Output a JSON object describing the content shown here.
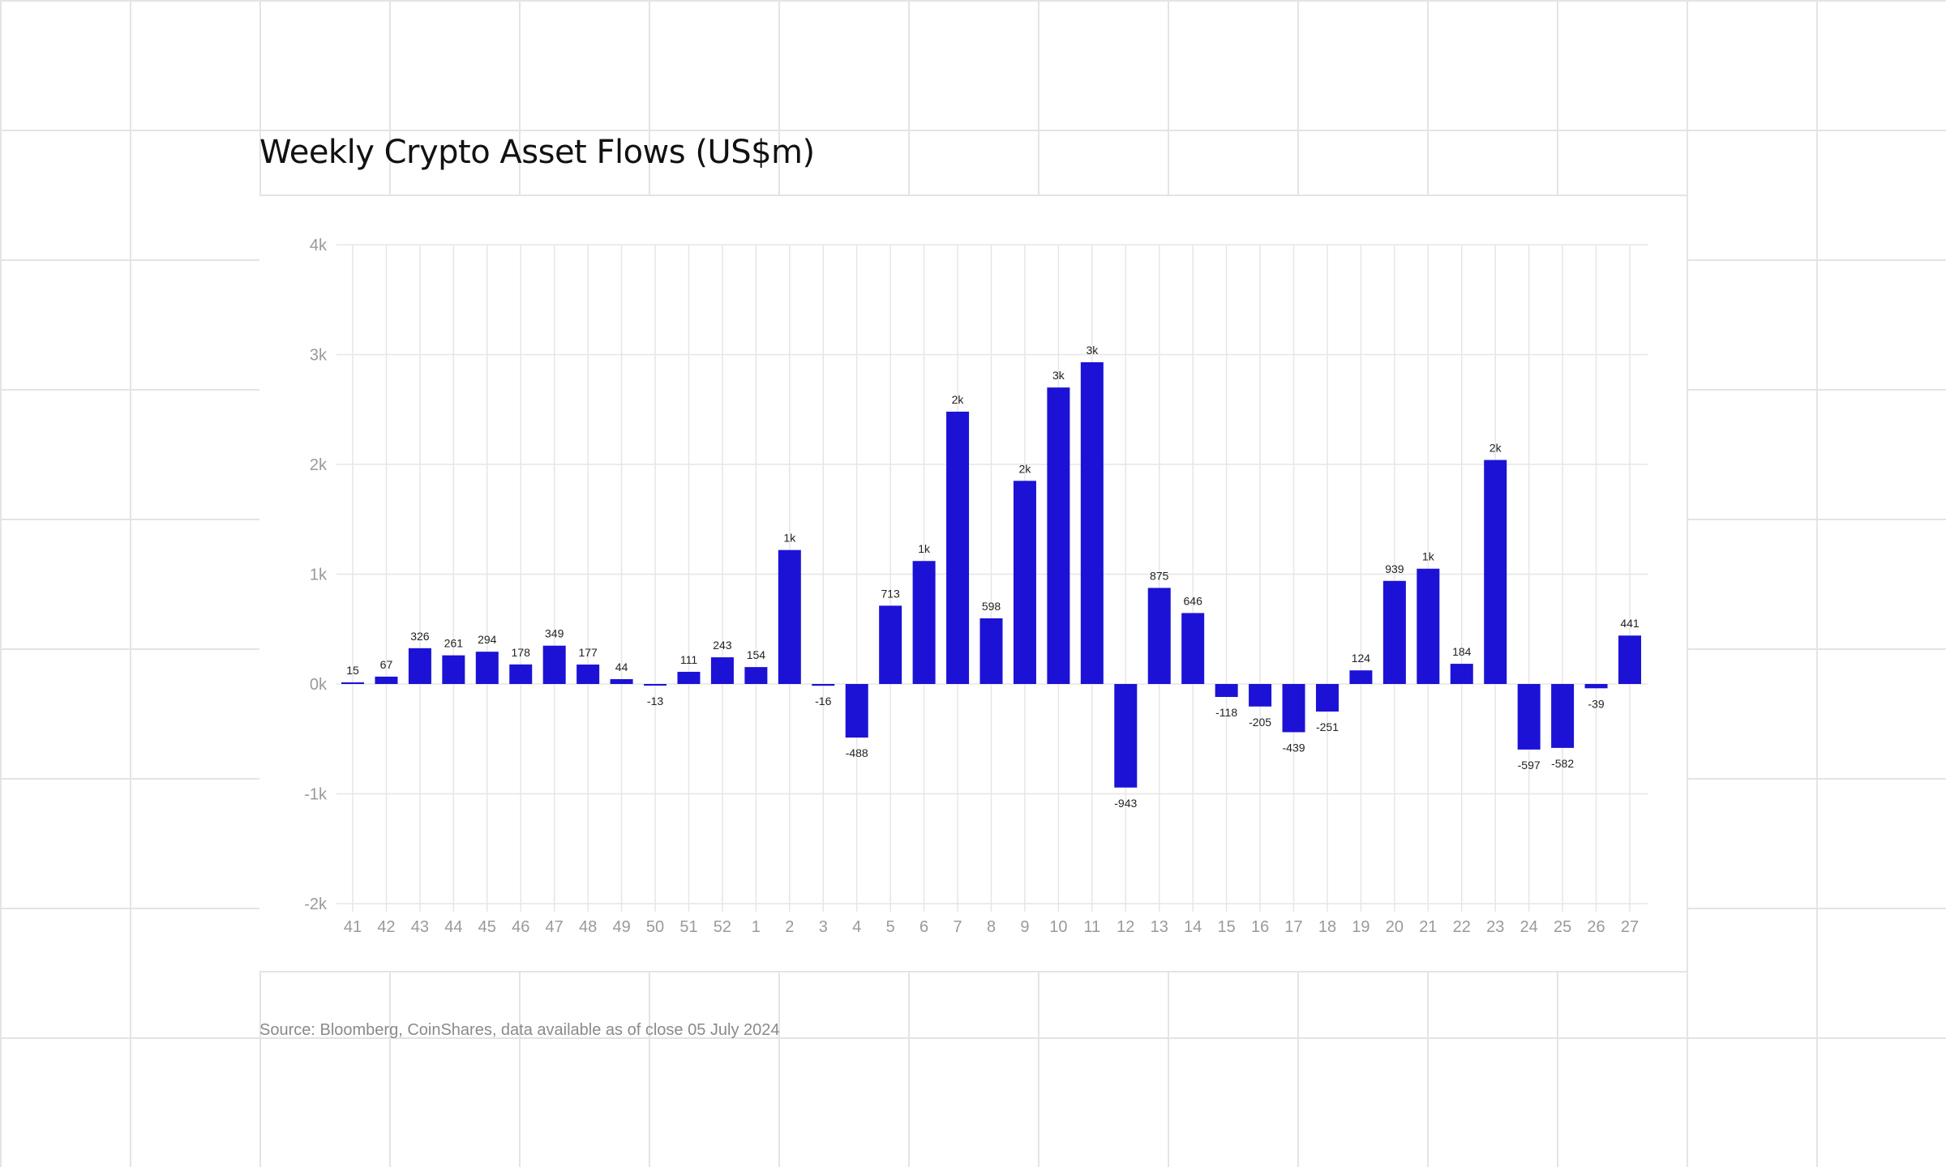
{
  "title": "Weekly Crypto Asset Flows (US$m)",
  "source": "Source: Bloomberg, CoinShares, data available as of close 05 July 2024",
  "colors": {
    "bar": "#1c12d6",
    "grid": "#e6e6e6",
    "axis_text": "#9a9a9a",
    "label_text": "#222222"
  },
  "chart_data": {
    "type": "bar",
    "categories": [
      "41",
      "42",
      "43",
      "44",
      "45",
      "46",
      "47",
      "48",
      "49",
      "50",
      "51",
      "52",
      "1",
      "2",
      "3",
      "4",
      "5",
      "6",
      "7",
      "8",
      "9",
      "10",
      "11",
      "12",
      "13",
      "14",
      "15",
      "16",
      "17",
      "18",
      "19",
      "20",
      "21",
      "22",
      "23",
      "24",
      "25",
      "26",
      "27"
    ],
    "values": [
      15,
      67,
      326,
      261,
      294,
      178,
      349,
      177,
      44,
      -13,
      111,
      243,
      154,
      1220,
      -16,
      -488,
      713,
      1120,
      2480,
      598,
      1850,
      2700,
      2930,
      -943,
      875,
      646,
      -118,
      -205,
      -439,
      -251,
      124,
      939,
      1050,
      184,
      2040,
      -597,
      -582,
      -39,
      441
    ],
    "data_labels": [
      "15",
      "67",
      "326",
      "261",
      "294",
      "178",
      "349",
      "177",
      "44",
      "-13",
      "111",
      "243",
      "154",
      "1k",
      "-16",
      "-488",
      "713",
      "1k",
      "2k",
      "598",
      "2k",
      "3k",
      "3k",
      "-943",
      "875",
      "646",
      "-118",
      "-205",
      "-439",
      "-251",
      "124",
      "939",
      "1k",
      "184",
      "2k",
      "-597",
      "-582",
      "-39",
      "441"
    ],
    "ylim": [
      -2000,
      4000
    ],
    "yticks": [
      -2000,
      -1000,
      0,
      1000,
      2000,
      3000,
      4000
    ],
    "ytick_labels": [
      "-2k",
      "-1k",
      "0k",
      "1k",
      "2k",
      "3k",
      "4k"
    ],
    "grid": true,
    "legend": "none"
  }
}
